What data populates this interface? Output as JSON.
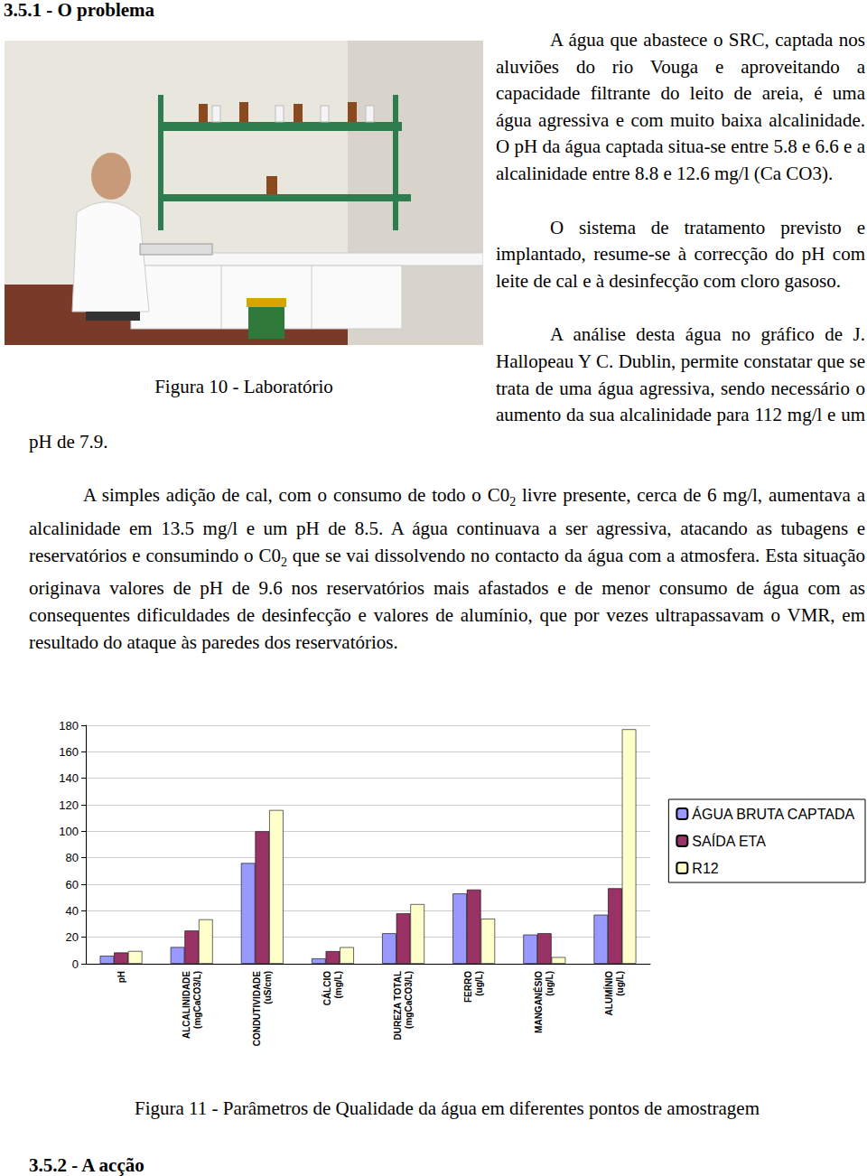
{
  "header": {
    "title": "3.5.1 - O problema"
  },
  "figure_10": {
    "caption": "Figura 10 - Laboratório"
  },
  "paragraphs": [
    [
      "A água que abastece o SRC, captada nos aluviões do rio Vouga e aproveitando a capacidade filtrante do leito de areia, é uma água agressiva e com muito baixa alcalinidade. O pH da água captada situa-se entre 5.8 e 6.6 e a alcalinidade entre 8.8 e 12.6 mg/l (Ca CO3)."
    ],
    [
      "O sistema de tratamento previsto e implantado, resume-se à correcção do pH com leite de cal e à desinfecção com cloro gasoso."
    ],
    [
      "A análise desta água no gráfico de J. Hallopeau Y C. Dublin, permite constatar que se trata de uma água agressiva, sendo necessário o aumento da sua alcalinidade para 112 mg/l e um pH de 7.9."
    ],
    [
      "A simples adição de cal, com o consumo de todo o C0",
      {
        "sub": "2"
      },
      " livre presente, cerca de 6 mg/l, aumentava a alcalinidade em 13.5 mg/l e um pH de 8.5. A água continuava a ser agressiva, atacando as tubagens e reservatórios e consumindo o C0",
      {
        "sub": "2"
      },
      " que se vai dissolvendo no contacto da água com a atmosfera. Esta situação originava valores de pH de 9.6 nos reservatórios mais afastados e de menor consumo de água com as consequentes dificuldades de desinfecção e valores de alumínio, que por vezes ultrapassavam o VMR, em resultado do ataque às paredes dos reservatórios."
    ]
  ],
  "chart_data": {
    "type": "bar",
    "categories": [
      "pH",
      "ALCALINIDADE\n(mgCaCO3/L)",
      "CONDUTIVIDADE\n(uS/cm)",
      "CÁLCIO\n(mg/L)",
      "DUREZA TOTAL\n(mgCaCO3/L)",
      "FERRO\n(ug/L)",
      "MANGANÉSIO\n(ug/L)",
      "ALUMÍNIO\n(ug/L)"
    ],
    "series": [
      {
        "name": "ÁGUA BRUTA CAPTADA",
        "color": "#9999ff",
        "values": [
          6,
          12.6,
          76,
          4,
          23,
          53,
          22,
          37
        ]
      },
      {
        "name": "SAÍDA ETA",
        "color": "#993366",
        "values": [
          8.5,
          25,
          100,
          9.5,
          38,
          56,
          23,
          57
        ]
      },
      {
        "name": "R12",
        "color": "#ffffcc",
        "values": [
          9.6,
          33.5,
          116,
          12.5,
          45,
          34,
          5,
          177
        ]
      }
    ],
    "ylim": [
      0,
      180
    ],
    "yticks": [
      0,
      20,
      40,
      60,
      80,
      100,
      120,
      140,
      160,
      180
    ],
    "grid": true,
    "legend": "right"
  },
  "figure_11": {
    "caption": "Figura 11 - Parâmetros de Qualidade da água em diferentes pontos de amostragem"
  },
  "next_section": {
    "title": "3.5.2 - A acção"
  }
}
